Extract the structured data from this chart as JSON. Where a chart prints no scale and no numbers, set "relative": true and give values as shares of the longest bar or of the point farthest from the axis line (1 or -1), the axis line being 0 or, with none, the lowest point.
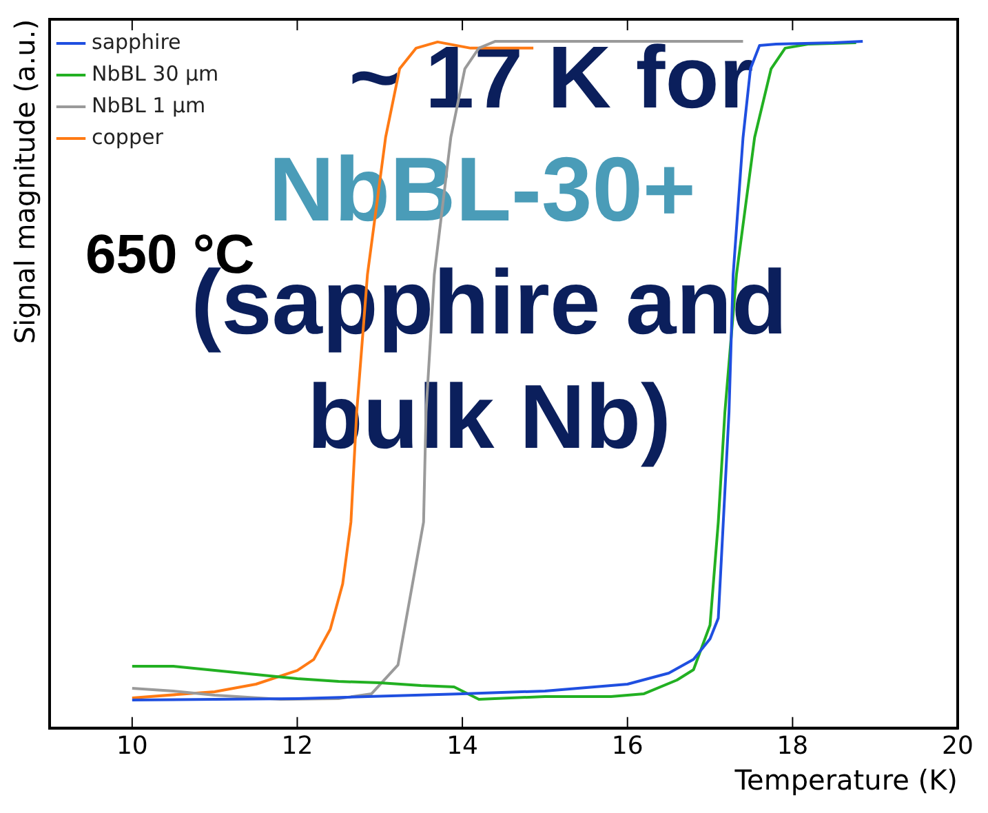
{
  "chart_data": {
    "type": "line",
    "relative": true,
    "xlabel": "Temperature (K)",
    "ylabel": "Signal magnitude (a.u.)",
    "xlim": [
      9,
      20
    ],
    "xticks": [
      10,
      12,
      14,
      16,
      18,
      20
    ],
    "legend": "top left",
    "marker": "none",
    "line_style": "solid",
    "annotations": [
      "650 °C",
      "~ 17 K for",
      "NbBL-30+",
      "(sapphire and bulk Nb)"
    ],
    "series": [
      {
        "name": "sapphire",
        "color": "#1f4fe0",
        "x": [
          10,
          12,
          14,
          15,
          16,
          16.5,
          16.8,
          17.0,
          17.1,
          17.23,
          17.28,
          17.4,
          17.49,
          17.6,
          17.8,
          18.5,
          18.85
        ],
        "values": [
          0.041,
          0.043,
          0.05,
          0.054,
          0.064,
          0.08,
          0.1,
          0.13,
          0.16,
          0.46,
          0.66,
          0.86,
          0.96,
          0.994,
          0.996,
          0.998,
          1.0
        ]
      },
      {
        "name": "NbBL 30 µm",
        "color": "#22b022",
        "x": [
          10,
          10.5,
          11,
          11.5,
          12,
          12.5,
          13,
          13.5,
          13.9,
          14.2,
          15,
          15.8,
          16.2,
          16.6,
          16.8,
          17.0,
          17.1,
          17.18,
          17.32,
          17.54,
          17.74,
          17.91,
          18.2,
          18.77
        ],
        "values": [
          0.09,
          0.09,
          0.084,
          0.078,
          0.072,
          0.068,
          0.066,
          0.062,
          0.06,
          0.042,
          0.046,
          0.046,
          0.05,
          0.07,
          0.085,
          0.15,
          0.3,
          0.46,
          0.66,
          0.86,
          0.96,
          0.99,
          0.996,
          0.998
        ]
      },
      {
        "name": "NbBL 1 µm",
        "color": "#9a9a9a",
        "x": [
          10,
          10.5,
          11,
          11.8,
          12.5,
          12.9,
          13.22,
          13.53,
          13.56,
          13.66,
          13.86,
          14.03,
          14.2,
          14.4,
          17.4
        ],
        "values": [
          0.058,
          0.054,
          0.048,
          0.042,
          0.043,
          0.05,
          0.092,
          0.3,
          0.46,
          0.66,
          0.86,
          0.96,
          0.99,
          1.0,
          1.0
        ]
      },
      {
        "name": "copper",
        "color": "#ff7a14",
        "x": [
          10,
          11,
          11.5,
          12,
          12.2,
          12.4,
          12.55,
          12.65,
          12.72,
          12.85,
          13.07,
          13.24,
          13.44,
          13.7,
          14.1,
          14.86
        ],
        "values": [
          0.044,
          0.053,
          0.064,
          0.084,
          0.1,
          0.144,
          0.21,
          0.3,
          0.46,
          0.66,
          0.86,
          0.96,
          0.99,
          0.999,
          0.99,
          0.99
        ]
      }
    ]
  }
}
